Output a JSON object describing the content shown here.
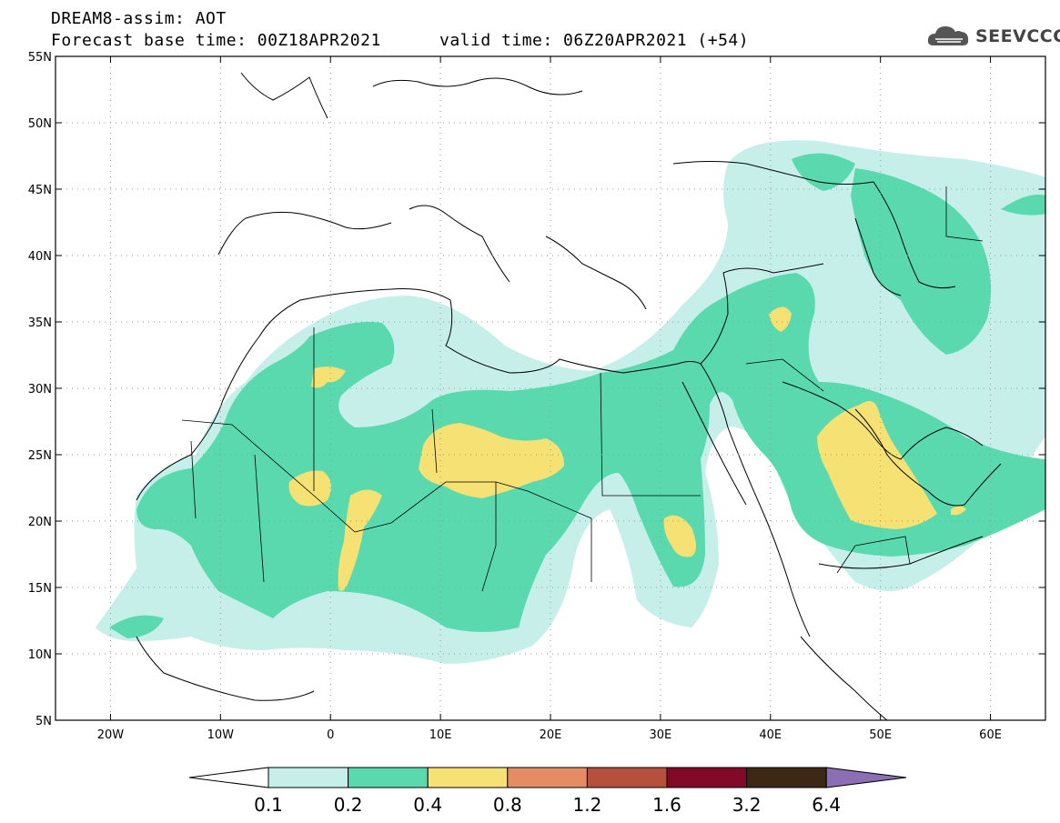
{
  "header": {
    "line1": "DREAM8-assim: AOT",
    "line2": "Forecast base time: 00Z18APR2021",
    "line2b": "valid time: 06Z20APR2021 (+54)"
  },
  "logo": {
    "text": "SEEVCCC",
    "icon": "cloud-icon"
  },
  "map": {
    "lat_labels": [
      "55N",
      "50N",
      "45N",
      "40N",
      "35N",
      "30N",
      "25N",
      "20N",
      "15N",
      "10N",
      "5N"
    ],
    "lon_labels": [
      "20W",
      "10W",
      "0",
      "10E",
      "20E",
      "30E",
      "40E",
      "50E",
      "60E"
    ],
    "lat_range": [
      5,
      55
    ],
    "lon_range": [
      -25,
      65
    ],
    "grid": "dotted"
  },
  "colorbar": {
    "labels": [
      "0.1",
      "0.2",
      "0.4",
      "0.8",
      "1.2",
      "1.6",
      "3.2",
      "6.4"
    ],
    "colors": [
      "#ffffff",
      "#c6efea",
      "#5ad9ae",
      "#f5e174",
      "#e58c64",
      "#b4503c",
      "#820a28",
      "#3c2814",
      "#8c6eb4"
    ]
  }
}
